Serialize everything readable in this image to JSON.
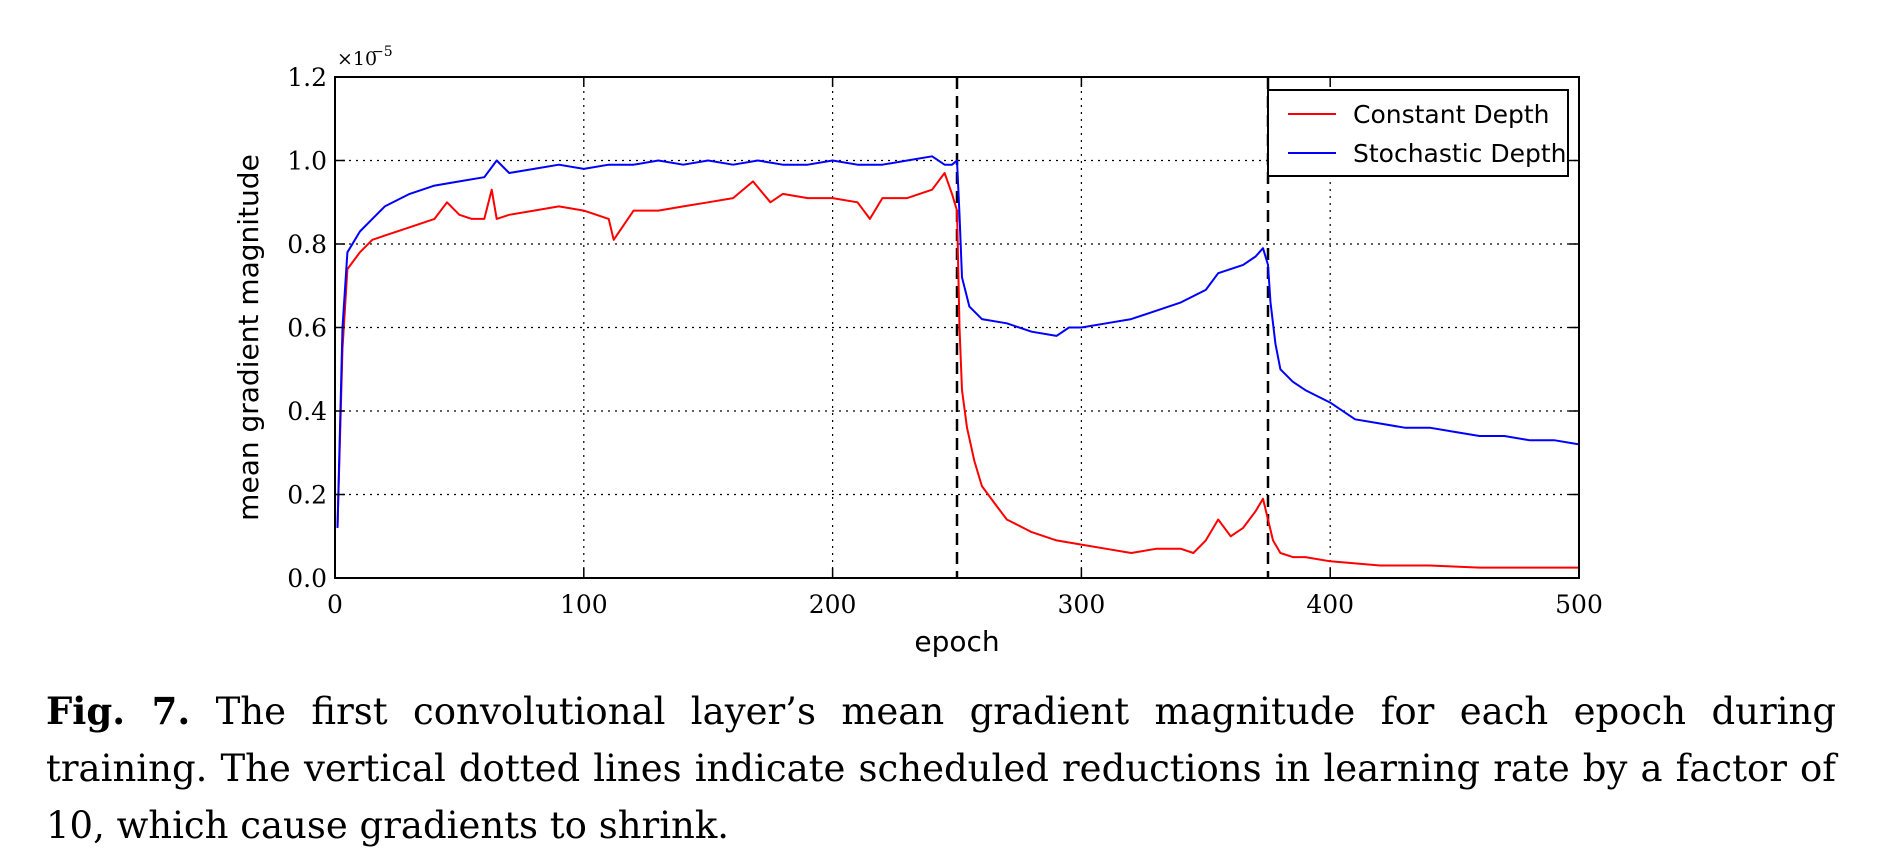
{
  "chart_data": {
    "type": "line",
    "xlabel": "epoch",
    "ylabel": "mean gradient magnitude",
    "xlim": [
      0,
      500
    ],
    "ylim": [
      0.0,
      1.2
    ],
    "x_ticks": [
      0,
      100,
      200,
      300,
      400,
      500
    ],
    "x_tick_labels": [
      "0",
      "100",
      "200",
      "300",
      "400",
      "500"
    ],
    "y_ticks": [
      0.0,
      0.2,
      0.4,
      0.6,
      0.8,
      1.0,
      1.2
    ],
    "y_tick_labels": [
      "0.0",
      "0.2",
      "0.4",
      "0.6",
      "0.8",
      "1.0",
      "1.2"
    ],
    "y_multiplier": {
      "base": "×10",
      "exponent": "−5"
    },
    "grid": true,
    "legend_position": "top-right",
    "vertical_markers": [
      250,
      375
    ],
    "series": [
      {
        "name": "Constant Depth",
        "color": "#ff0000",
        "x": [
          1,
          3,
          5,
          10,
          15,
          20,
          30,
          40,
          45,
          50,
          55,
          60,
          63,
          65,
          70,
          80,
          90,
          100,
          110,
          112,
          120,
          130,
          140,
          150,
          160,
          168,
          175,
          180,
          190,
          200,
          210,
          215,
          220,
          230,
          240,
          245,
          248,
          250,
          251,
          252,
          254,
          257,
          260,
          265,
          270,
          280,
          290,
          300,
          310,
          320,
          330,
          340,
          345,
          350,
          355,
          360,
          365,
          370,
          373,
          375,
          377,
          380,
          385,
          390,
          400,
          410,
          420,
          440,
          460,
          480,
          500
        ],
        "y": [
          0.12,
          0.55,
          0.74,
          0.78,
          0.81,
          0.82,
          0.84,
          0.86,
          0.9,
          0.87,
          0.86,
          0.86,
          0.93,
          0.86,
          0.87,
          0.88,
          0.89,
          0.88,
          0.86,
          0.81,
          0.88,
          0.88,
          0.89,
          0.9,
          0.91,
          0.95,
          0.9,
          0.92,
          0.91,
          0.91,
          0.9,
          0.86,
          0.91,
          0.91,
          0.93,
          0.97,
          0.92,
          0.88,
          0.6,
          0.45,
          0.36,
          0.28,
          0.22,
          0.18,
          0.14,
          0.11,
          0.09,
          0.08,
          0.07,
          0.06,
          0.07,
          0.07,
          0.06,
          0.09,
          0.14,
          0.1,
          0.12,
          0.16,
          0.19,
          0.14,
          0.09,
          0.06,
          0.05,
          0.05,
          0.04,
          0.035,
          0.03,
          0.03,
          0.025,
          0.025,
          0.025
        ]
      },
      {
        "name": "Stochastic Depth",
        "color": "#0000ff",
        "x": [
          1,
          3,
          5,
          10,
          15,
          20,
          30,
          40,
          50,
          60,
          65,
          70,
          80,
          90,
          100,
          110,
          120,
          130,
          140,
          150,
          160,
          170,
          180,
          190,
          200,
          210,
          220,
          230,
          240,
          245,
          248,
          250,
          251,
          252,
          255,
          260,
          270,
          280,
          290,
          295,
          300,
          310,
          320,
          330,
          340,
          350,
          355,
          360,
          365,
          370,
          373,
          375,
          376,
          378,
          380,
          385,
          390,
          400,
          410,
          420,
          430,
          440,
          450,
          460,
          470,
          480,
          490,
          500
        ],
        "y": [
          0.12,
          0.6,
          0.78,
          0.83,
          0.86,
          0.89,
          0.92,
          0.94,
          0.95,
          0.96,
          1.0,
          0.97,
          0.98,
          0.99,
          0.98,
          0.99,
          0.99,
          1.0,
          0.99,
          1.0,
          0.99,
          1.0,
          0.99,
          0.99,
          1.0,
          0.99,
          0.99,
          1.0,
          1.01,
          0.99,
          0.99,
          1.0,
          0.87,
          0.72,
          0.65,
          0.62,
          0.61,
          0.59,
          0.58,
          0.6,
          0.6,
          0.61,
          0.62,
          0.64,
          0.66,
          0.69,
          0.73,
          0.74,
          0.75,
          0.77,
          0.79,
          0.75,
          0.66,
          0.56,
          0.5,
          0.47,
          0.45,
          0.42,
          0.38,
          0.37,
          0.36,
          0.36,
          0.35,
          0.34,
          0.34,
          0.33,
          0.33,
          0.32
        ]
      }
    ]
  },
  "caption": {
    "label": "Fig. 7.",
    "text": "The first convolutional layer’s mean gradient magnitude for each epoch during training. The vertical dotted lines indicate scheduled reductions in learning rate by a factor of 10, which cause gradients to shrink."
  }
}
